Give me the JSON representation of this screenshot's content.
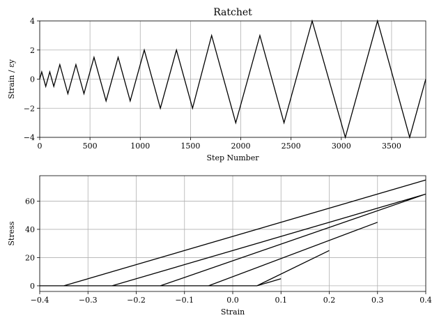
{
  "chart_data": [
    {
      "type": "line",
      "title": "Ratchet",
      "xlabel": "Step Number",
      "ylabel": "Strain / εy",
      "xlim": [
        0,
        3840
      ],
      "ylim": [
        -4,
        4
      ],
      "grid": true,
      "xticks": [
        0,
        500,
        1000,
        1500,
        2000,
        2500,
        3000,
        3500
      ],
      "yticks": [
        -4,
        -2,
        0,
        2,
        4
      ],
      "xtick_labels": [
        "0",
        "500",
        "1000",
        "1500",
        "2000",
        "2500",
        "3000",
        "3500"
      ],
      "ytick_labels": [
        "−4",
        "−2",
        "0",
        "2",
        "4"
      ],
      "series": [
        {
          "x": [
            0,
            20,
            60,
            100,
            140,
            200,
            280,
            360,
            440,
            540,
            660,
            780,
            900,
            1040,
            1200,
            1360,
            1520,
            1710,
            1950,
            2190,
            2430,
            2710,
            3040,
            3360,
            3680,
            3840
          ],
          "y": [
            0,
            0.5,
            -0.5,
            0.5,
            -0.5,
            1,
            -1,
            1,
            -1,
            1.5,
            -1.5,
            1.5,
            -1.5,
            2,
            -2,
            2,
            -2,
            3,
            -3,
            3,
            -3,
            4,
            -4,
            4,
            -4,
            0
          ]
        }
      ]
    },
    {
      "type": "line",
      "title": "",
      "xlabel": "Strain",
      "ylabel": "Stress",
      "xlim": [
        -0.4,
        0.4
      ],
      "ylim": [
        -4,
        78
      ],
      "grid": true,
      "xticks": [
        -0.4,
        -0.3,
        -0.2,
        -0.1,
        0,
        0.1,
        0.2,
        0.3,
        0.4
      ],
      "yticks": [
        0,
        20,
        40,
        60
      ],
      "xtick_labels": [
        "−0.4",
        "−0.3",
        "−0.2",
        "−0.1",
        "0.0",
        "0.1",
        "0.2",
        "0.3",
        "0.4"
      ],
      "ytick_labels": [
        "0",
        "20",
        "40",
        "60"
      ],
      "series": [
        {
          "x": [
            0,
            0.05,
            0.1,
            0.05,
            -0.05,
            0.05,
            0.2,
            0.05,
            -0.05,
            -0.15,
            -0.05,
            0.3,
            -0.05,
            -0.15,
            -0.25,
            -0.15,
            0.4,
            -0.15,
            -0.25,
            -0.35,
            -0.25,
            0.4,
            -0.25,
            -0.35,
            -0.4,
            -0.35,
            0.4,
            -0.35,
            -0.4
          ],
          "y": [
            0,
            0,
            5,
            0,
            0,
            0,
            25,
            0,
            0,
            0,
            0,
            45,
            0,
            0,
            0,
            0,
            65,
            0,
            0,
            0,
            0,
            65,
            0,
            0,
            0,
            0,
            75,
            0,
            0
          ]
        }
      ]
    }
  ]
}
